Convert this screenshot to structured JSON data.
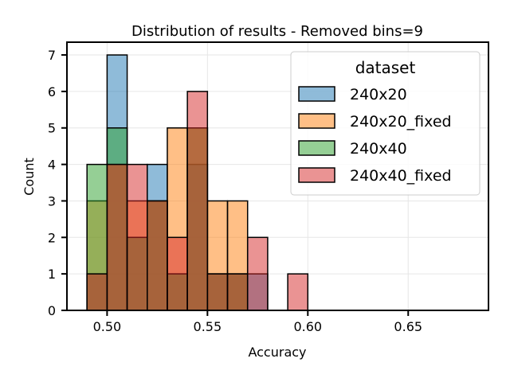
{
  "chart_data": {
    "type": "histogram",
    "title": "Distribution of results - Removed bins=9",
    "xlabel": "Accuracy",
    "ylabel": "Count",
    "xlim": [
      0.48,
      0.69
    ],
    "ylim": [
      0,
      7.35
    ],
    "xticks": [
      0.5,
      0.55,
      0.6,
      0.65
    ],
    "xtick_labels": [
      "0.50",
      "0.55",
      "0.60",
      "0.65"
    ],
    "yticks": [
      0,
      1,
      2,
      3,
      4,
      5,
      6,
      7
    ],
    "ytick_labels": [
      "0",
      "1",
      "2",
      "3",
      "4",
      "5",
      "6",
      "7"
    ],
    "grid": true,
    "legend_title": "dataset",
    "legend_position": "top-right",
    "bin_edges": [
      0.49,
      0.5,
      0.51,
      0.52,
      0.53,
      0.54,
      0.55,
      0.56,
      0.57,
      0.58,
      0.59,
      0.6,
      0.61,
      0.62,
      0.63,
      0.64,
      0.65,
      0.66,
      0.67,
      0.68
    ],
    "series": [
      {
        "name": "240x20",
        "color": "#1f77b4",
        "counts": [
          1,
          7,
          2,
          4,
          1,
          4,
          1,
          1,
          1,
          0,
          0,
          0,
          0,
          0,
          0,
          0,
          0,
          0,
          0
        ]
      },
      {
        "name": "240x20_fixed",
        "color": "#ff7f0e",
        "counts": [
          3,
          4,
          3,
          3,
          5,
          5,
          3,
          3,
          0,
          0,
          0,
          0,
          0,
          0,
          0,
          0,
          0,
          0,
          0
        ]
      },
      {
        "name": "240x40",
        "color": "#2ca02c",
        "counts": [
          4,
          5,
          2,
          3,
          1,
          5,
          1,
          1,
          0,
          0,
          0,
          0,
          0,
          0,
          0,
          0,
          0,
          0,
          0
        ]
      },
      {
        "name": "240x40_fixed",
        "color": "#d62728",
        "counts": [
          1,
          4,
          4,
          3,
          2,
          6,
          1,
          1,
          2,
          0,
          1,
          0,
          0,
          0,
          0,
          0,
          0,
          0,
          0
        ]
      }
    ]
  }
}
